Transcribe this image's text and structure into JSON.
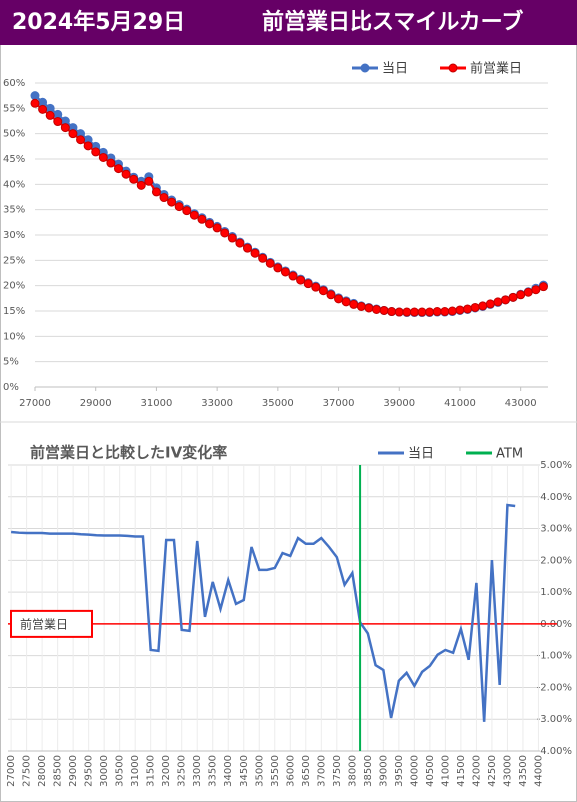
{
  "header": {
    "date": "2024年5月29日",
    "title": "前営業日比スマイルカーブ"
  },
  "chart_data": [
    {
      "type": "line",
      "x": [
        27000,
        27250,
        27500,
        27750,
        28000,
        28250,
        28500,
        28750,
        29000,
        29250,
        29500,
        29750,
        30000,
        30250,
        30500,
        30750,
        31000,
        31250,
        31500,
        31750,
        32000,
        32250,
        32500,
        32750,
        33000,
        33250,
        33500,
        33750,
        34000,
        34250,
        34500,
        34750,
        35000,
        35250,
        35500,
        35750,
        36000,
        36250,
        36500,
        36750,
        37000,
        37250,
        37500,
        37750,
        38000,
        38250,
        38500,
        38750,
        39000,
        39250,
        39500,
        39750,
        40000,
        40250,
        40500,
        40750,
        41000,
        41250,
        41500,
        41750,
        42000,
        42250,
        42500,
        42750,
        43000,
        43250,
        43500,
        43750
      ],
      "series": [
        {
          "name": "当日",
          "color": "#4472c4",
          "values": [
            57.5,
            56.2,
            55.0,
            53.8,
            52.5,
            51.2,
            50.0,
            48.8,
            47.5,
            46.3,
            45.2,
            44.0,
            42.6,
            41.4,
            40.6,
            41.5,
            39.3,
            38.0,
            36.9,
            36.0,
            35.1,
            34.2,
            33.4,
            32.5,
            31.7,
            30.7,
            29.7,
            28.6,
            27.6,
            26.6,
            25.6,
            24.6,
            23.7,
            22.9,
            22.1,
            21.3,
            20.6,
            19.9,
            19.2,
            18.4,
            17.6,
            17.0,
            16.5,
            16.0,
            15.7,
            15.4,
            15.1,
            14.9,
            14.8,
            14.7,
            14.7,
            14.7,
            14.7,
            14.8,
            14.8,
            14.9,
            15.1,
            15.3,
            15.6,
            15.9,
            16.3,
            16.7,
            17.2,
            17.7,
            18.3,
            18.8,
            19.5,
            20.1
          ]
        },
        {
          "name": "前営業日",
          "color": "#ff0000",
          "values": [
            56.0,
            54.8,
            53.6,
            52.4,
            51.2,
            50.0,
            48.8,
            47.6,
            46.4,
            45.3,
            44.2,
            43.1,
            42.0,
            41.0,
            39.8,
            40.6,
            38.5,
            37.4,
            36.5,
            35.6,
            34.8,
            33.9,
            33.1,
            32.2,
            31.4,
            30.4,
            29.4,
            28.4,
            27.4,
            26.4,
            25.4,
            24.4,
            23.5,
            22.7,
            21.9,
            21.1,
            20.4,
            19.7,
            19.0,
            18.2,
            17.4,
            16.8,
            16.3,
            15.9,
            15.6,
            15.3,
            15.1,
            14.9,
            14.8,
            14.8,
            14.8,
            14.8,
            14.8,
            14.9,
            14.9,
            15.0,
            15.2,
            15.4,
            15.7,
            16.0,
            16.4,
            16.8,
            17.2,
            17.7,
            18.2,
            18.7,
            19.2,
            19.8
          ]
        }
      ],
      "xlim": [
        27000,
        43900
      ],
      "xticks": [
        27000,
        29000,
        31000,
        33000,
        35000,
        37000,
        39000,
        41000,
        43000
      ],
      "ylim": [
        0,
        60
      ],
      "yticks": [
        {
          "value": 0,
          "label": "0%"
        },
        {
          "value": 5,
          "label": "5%"
        },
        {
          "value": 10,
          "label": "10%"
        },
        {
          "value": 15,
          "label": "15%"
        },
        {
          "value": 20,
          "label": "20%"
        },
        {
          "value": 25,
          "label": "25%"
        },
        {
          "value": 30,
          "label": "30%"
        },
        {
          "value": 35,
          "label": "35%"
        },
        {
          "value": 40,
          "label": "40%"
        },
        {
          "value": 45,
          "label": "45%"
        },
        {
          "value": 50,
          "label": "50%"
        },
        {
          "value": 55,
          "label": "55%"
        },
        {
          "value": 60,
          "label": "60%"
        }
      ],
      "grid": true,
      "markers": true,
      "legend": "top-right"
    },
    {
      "type": "line",
      "title": "前営業日と比較したIV変化率",
      "x": [
        27000,
        27250,
        27500,
        27750,
        28000,
        28250,
        28500,
        28750,
        29000,
        29250,
        29500,
        29750,
        30000,
        30250,
        30500,
        30750,
        31000,
        31250,
        31500,
        31750,
        32000,
        32250,
        32500,
        32750,
        33000,
        33250,
        33500,
        33750,
        34000,
        34250,
        34500,
        34750,
        35000,
        35250,
        35500,
        35750,
        36000,
        36250,
        36500,
        36750,
        37000,
        37250,
        37500,
        37750,
        38000,
        38250,
        38500,
        38750,
        39000,
        39250,
        39500,
        39750,
        40000,
        40250,
        40500,
        40750,
        41000,
        41250,
        41500,
        41750,
        42000,
        42250,
        42500,
        42750,
        43000,
        43250
      ],
      "series": [
        {
          "name": "当日",
          "color": "#4472c4",
          "values": [
            2.89,
            2.87,
            2.86,
            2.86,
            2.86,
            2.84,
            2.84,
            2.84,
            2.84,
            2.82,
            2.81,
            2.79,
            2.78,
            2.78,
            2.78,
            2.77,
            2.75,
            2.75,
            -0.82,
            -0.85,
            2.64,
            2.64,
            -0.19,
            -0.22,
            2.61,
            0.22,
            1.32,
            0.47,
            1.38,
            0.63,
            0.75,
            2.42,
            1.7,
            1.7,
            1.76,
            2.23,
            2.14,
            2.7,
            2.52,
            2.52,
            2.7,
            2.42,
            2.1,
            1.23,
            1.6,
            0.05,
            -0.3,
            -1.3,
            -1.45,
            -2.96,
            -1.79,
            -1.54,
            -1.95,
            -1.51,
            -1.32,
            -0.97,
            -0.82,
            -0.91,
            -0.16,
            -1.13,
            1.29,
            -3.08,
            2.01,
            -1.92,
            3.74,
            3.71
          ]
        }
      ],
      "atm": {
        "name": "ATM",
        "x": 38250,
        "color": "#00b050"
      },
      "baseline": {
        "label": "前営業日",
        "value": 0,
        "color": "#ff0000"
      },
      "xlim": [
        26900,
        44050
      ],
      "xticks": [
        27000,
        27500,
        28000,
        28500,
        29000,
        29500,
        30000,
        30500,
        31000,
        31500,
        32000,
        32500,
        33000,
        33500,
        34000,
        34500,
        35000,
        35500,
        36000,
        36500,
        37000,
        37500,
        38000,
        38500,
        39000,
        39500,
        40000,
        40500,
        41000,
        41500,
        42000,
        42500,
        43000,
        43500,
        44000
      ],
      "ylim": [
        -4,
        5
      ],
      "yticks": [
        {
          "value": -4,
          "label": "-4.00%"
        },
        {
          "value": -3,
          "label": "-3.00%"
        },
        {
          "value": -2,
          "label": "-2.00%"
        },
        {
          "value": -1,
          "label": "-1.00%"
        },
        {
          "value": 0,
          "label": "0.00%"
        },
        {
          "value": 1,
          "label": "1.00%"
        },
        {
          "value": 2,
          "label": "2.00%"
        },
        {
          "value": 3,
          "label": "3.00%"
        },
        {
          "value": 4,
          "label": "4.00%"
        },
        {
          "value": 5,
          "label": "5.00%"
        }
      ],
      "grid": true,
      "markers": false,
      "legend": "top-right"
    }
  ]
}
